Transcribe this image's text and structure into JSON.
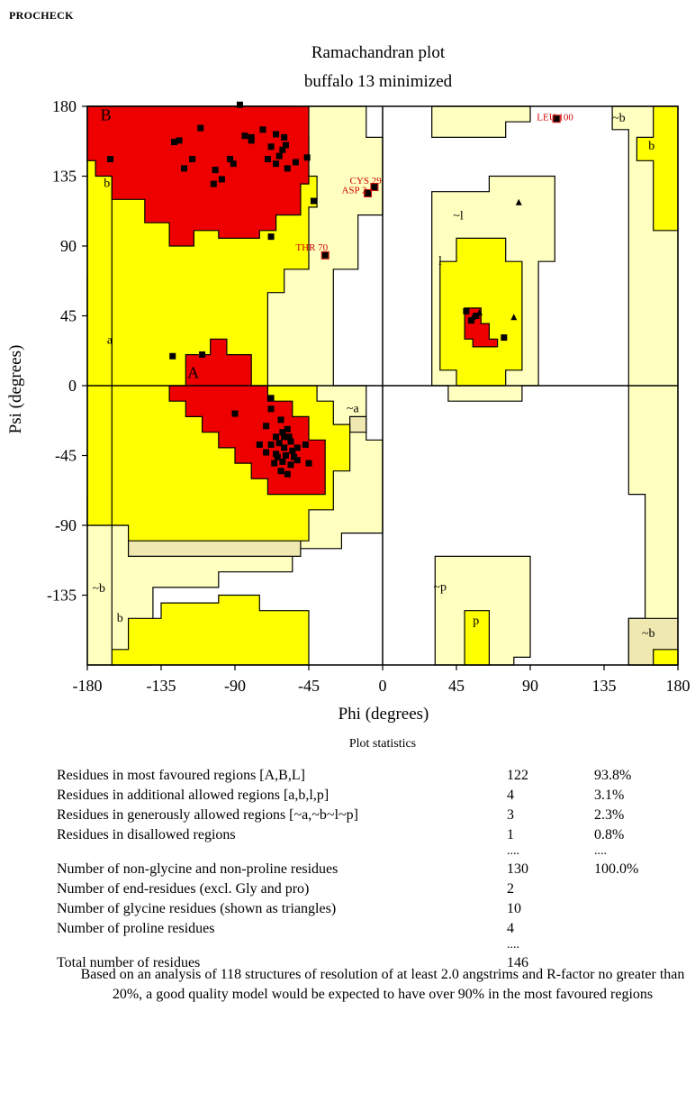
{
  "header": {
    "program": "PROCHECK"
  },
  "chart_data": {
    "type": "scatter",
    "title": "Ramachandran plot",
    "subtitle": "buffalo 13 minimized",
    "xlabel": "Phi (degrees)",
    "ylabel": "Psi (degrees)",
    "xlim": [
      -180,
      180
    ],
    "ylim": [
      -180,
      180
    ],
    "xticks": [
      "-180",
      "-135",
      "-90",
      "-45",
      "0",
      "45",
      "90",
      "135",
      "180"
    ],
    "yticks": [
      "180",
      "135",
      "90",
      "45",
      "0",
      "-45",
      "-90",
      "-135"
    ],
    "colors": {
      "core": "#ee0000",
      "allowed": "#ffff00",
      "generous": "#ffffc0",
      "extra": "#efe8b0",
      "disallowed": "#ffffff",
      "point": "#000000"
    },
    "region_labels": [
      {
        "text": "B",
        "x": -172,
        "y": 171
      },
      {
        "text": "b",
        "x": -170,
        "y": 128
      },
      {
        "text": "a",
        "x": -168,
        "y": 27
      },
      {
        "text": "A",
        "x": -119,
        "y": 5
      },
      {
        "text": "~a",
        "x": -22,
        "y": -17
      },
      {
        "text": "~l",
        "x": 43,
        "y": 107
      },
      {
        "text": "l",
        "x": 34,
        "y": 78
      },
      {
        "text": "~b",
        "x": 140,
        "y": 170
      },
      {
        "text": "b",
        "x": 162,
        "y": 152
      },
      {
        "text": "~b",
        "x": -177,
        "y": -133
      },
      {
        "text": "b",
        "x": -162,
        "y": -152
      },
      {
        "text": "~p",
        "x": 31,
        "y": -132
      },
      {
        "text": "p",
        "x": 55,
        "y": -154
      },
      {
        "text": "~b",
        "x": 158,
        "y": -162
      }
    ],
    "outlier_labels": [
      {
        "text": "LEU 100",
        "x": 94,
        "y": 171
      },
      {
        "text": "CYS 29",
        "x": -20,
        "y": 130
      },
      {
        "text": "ASP 2",
        "x": -25,
        "y": 124
      },
      {
        "text": "THR 70",
        "x": -53,
        "y": 87
      }
    ],
    "residues": [
      {
        "x": -87,
        "y": 181
      },
      {
        "x": -127,
        "y": 157
      },
      {
        "x": -124,
        "y": 158
      },
      {
        "x": -111,
        "y": 166
      },
      {
        "x": -121,
        "y": 140
      },
      {
        "x": -116,
        "y": 146
      },
      {
        "x": -102,
        "y": 139
      },
      {
        "x": -103,
        "y": 130
      },
      {
        "x": -98,
        "y": 133
      },
      {
        "x": -93,
        "y": 146
      },
      {
        "x": -84,
        "y": 161
      },
      {
        "x": -80,
        "y": 160
      },
      {
        "x": -91,
        "y": 143
      },
      {
        "x": -80,
        "y": 158
      },
      {
        "x": -73,
        "y": 165
      },
      {
        "x": -68,
        "y": 154
      },
      {
        "x": -65,
        "y": 162
      },
      {
        "x": -61,
        "y": 152
      },
      {
        "x": -59,
        "y": 155
      },
      {
        "x": -60,
        "y": 160
      },
      {
        "x": -63,
        "y": 148
      },
      {
        "x": -65,
        "y": 143
      },
      {
        "x": -58,
        "y": 140
      },
      {
        "x": -53,
        "y": 144
      },
      {
        "x": -46,
        "y": 147
      },
      {
        "x": -70,
        "y": 146
      },
      {
        "x": -166,
        "y": 146
      },
      {
        "x": -42,
        "y": 119
      },
      {
        "x": -68,
        "y": 96
      },
      {
        "x": -35,
        "y": 84
      },
      {
        "x": -9,
        "y": 124
      },
      {
        "x": -5,
        "y": 128
      },
      {
        "x": 106,
        "y": 172
      },
      {
        "x": -128,
        "y": 19
      },
      {
        "x": -110,
        "y": 20
      },
      {
        "x": -68,
        "y": -8
      },
      {
        "x": -68,
        "y": -15
      },
      {
        "x": -90,
        "y": -18
      },
      {
        "x": -62,
        "y": -22
      },
      {
        "x": -71,
        "y": -26
      },
      {
        "x": -61,
        "y": -30
      },
      {
        "x": -65,
        "y": -33
      },
      {
        "x": -57,
        "y": -33
      },
      {
        "x": -63,
        "y": -37
      },
      {
        "x": -56,
        "y": -36
      },
      {
        "x": -60,
        "y": -40
      },
      {
        "x": -68,
        "y": -38
      },
      {
        "x": -71,
        "y": -43
      },
      {
        "x": -65,
        "y": -44
      },
      {
        "x": -59,
        "y": -45
      },
      {
        "x": -55,
        "y": -42
      },
      {
        "x": -61,
        "y": -49
      },
      {
        "x": -56,
        "y": -51
      },
      {
        "x": -66,
        "y": -50
      },
      {
        "x": -62,
        "y": -55
      },
      {
        "x": -58,
        "y": -57
      },
      {
        "x": -54,
        "y": -46
      },
      {
        "x": -52,
        "y": -40
      },
      {
        "x": -47,
        "y": -38
      },
      {
        "x": -60,
        "y": -33
      },
      {
        "x": -52,
        "y": -48
      },
      {
        "x": -45,
        "y": -50
      },
      {
        "x": -75,
        "y": -38
      },
      {
        "x": -58,
        "y": -28
      },
      {
        "x": -64,
        "y": -46
      },
      {
        "x": 51,
        "y": 48
      },
      {
        "x": 57,
        "y": 45
      },
      {
        "x": 54,
        "y": 42
      },
      {
        "x": 74,
        "y": 31
      }
    ],
    "glycines": [
      {
        "x": 83,
        "y": 118
      },
      {
        "x": 59,
        "y": 47
      },
      {
        "x": 80,
        "y": 44
      },
      {
        "x": 55,
        "y": 44
      }
    ]
  },
  "stats": {
    "heading": "Plot statistics",
    "rows": [
      {
        "label": "Residues in most favoured regions [A,B,L]",
        "count": "122",
        "percent": "93.8%"
      },
      {
        "label": "Residues in additional allowed regions [a,b,l,p]",
        "count": "4",
        "percent": "3.1%"
      },
      {
        "label": "Residues in generously allowed regions [~a,~b~l~p]",
        "count": "3",
        "percent": "2.3%"
      },
      {
        "label": "Residues in disallowed regions",
        "count": "1",
        "percent": "0.8%"
      },
      {
        "label": "",
        "count": "....",
        "percent": "...."
      },
      {
        "label": "Number of non-glycine and non-proline residues",
        "count": "130",
        "percent": "100.0%"
      },
      {
        "label": "Number of end-residues (excl. Gly and pro)",
        "count": "2",
        "percent": ""
      },
      {
        "label": "Number of glycine residues (shown as triangles)",
        "count": "10",
        "percent": ""
      },
      {
        "label": "Number of proline residues",
        "count": "4",
        "percent": ""
      },
      {
        "label": "",
        "count": "....",
        "percent": ""
      },
      {
        "label": "Total number of residues",
        "count": "146",
        "percent": ""
      }
    ],
    "footnote": "Based on an analysis of 118 structures of resolution of at least 2.0 angstrims and R-factor no greater than 20%, a good quality model would be expected to have over 90% in the most favoured regions"
  }
}
